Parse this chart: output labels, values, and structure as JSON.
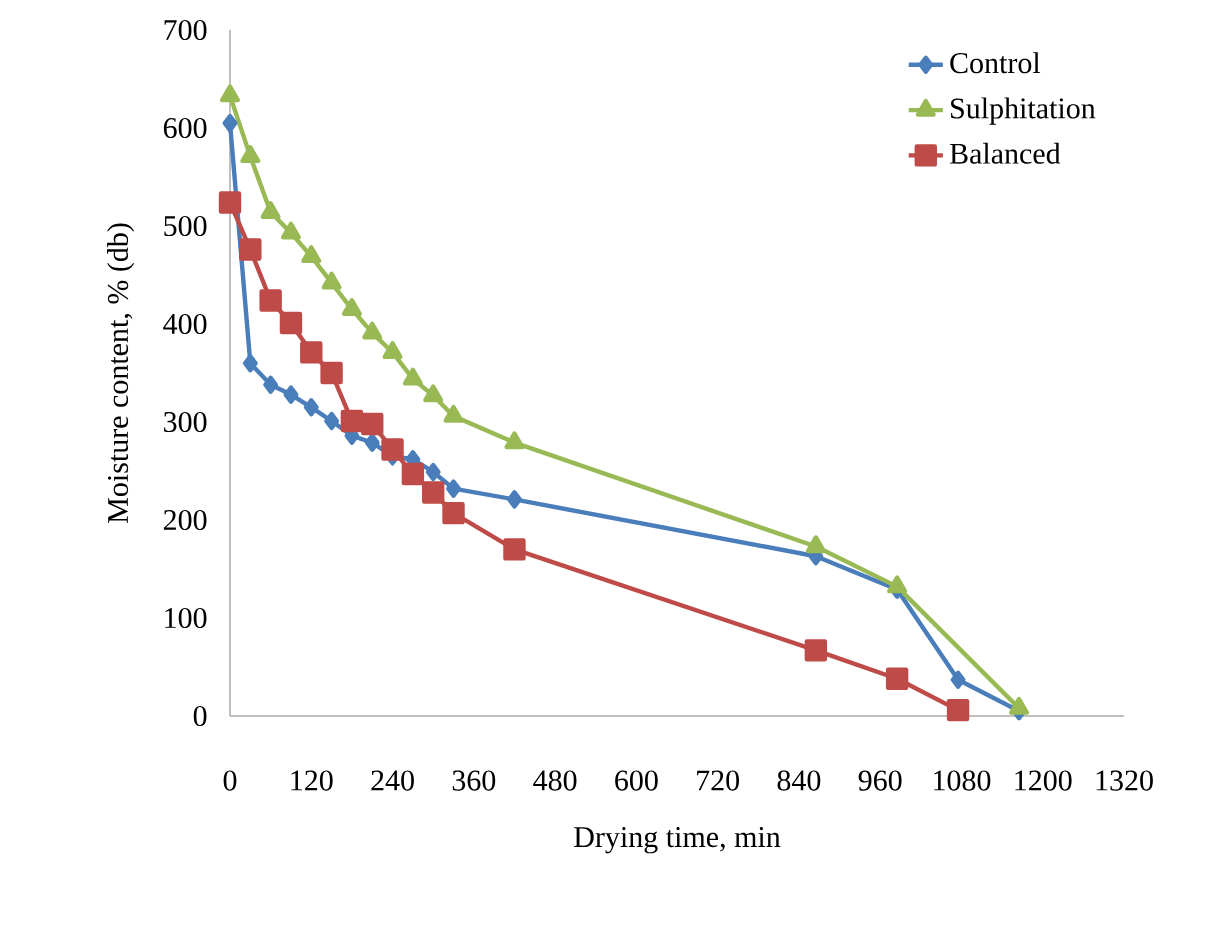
{
  "chart_data": {
    "type": "line",
    "xlabel": "Drying time, min",
    "ylabel": "Moisture content, % (db)",
    "xlim": [
      0,
      1320
    ],
    "ylim": [
      0,
      700
    ],
    "xticks": [
      0,
      120,
      240,
      360,
      480,
      600,
      720,
      840,
      960,
      1080,
      1200,
      1320
    ],
    "yticks": [
      0,
      100,
      200,
      300,
      400,
      500,
      600,
      700
    ],
    "legend": "top right",
    "grid": false,
    "series": [
      {
        "name": "Control",
        "color": "#4a7ebb",
        "marker": "diamond",
        "x": [
          0,
          30,
          60,
          90,
          120,
          150,
          180,
          210,
          240,
          270,
          300,
          330,
          420,
          865,
          985,
          1075,
          1165
        ],
        "values": [
          605,
          360,
          338,
          328,
          315,
          301,
          286,
          279,
          265,
          262,
          249,
          232,
          221,
          163,
          129,
          37,
          5
        ]
      },
      {
        "name": "Sulphitation",
        "color": "#98b954",
        "marker": "triangle",
        "x": [
          0,
          30,
          60,
          90,
          120,
          150,
          180,
          210,
          240,
          270,
          300,
          330,
          420,
          865,
          985,
          1075,
          1165
        ],
        "values": [
          633,
          571,
          514,
          493,
          469,
          442,
          415,
          391,
          371,
          344,
          327,
          306,
          279,
          173,
          132,
          null,
          8
        ]
      },
      {
        "name": "Balanced",
        "color": "#be4b48",
        "marker": "square",
        "x": [
          0,
          30,
          60,
          90,
          120,
          150,
          180,
          210,
          240,
          270,
          300,
          330,
          420,
          865,
          985,
          1075
        ],
        "values": [
          524,
          476,
          424,
          401,
          371,
          350,
          301,
          298,
          272,
          247,
          228,
          207,
          170,
          67,
          38,
          6
        ]
      }
    ]
  }
}
